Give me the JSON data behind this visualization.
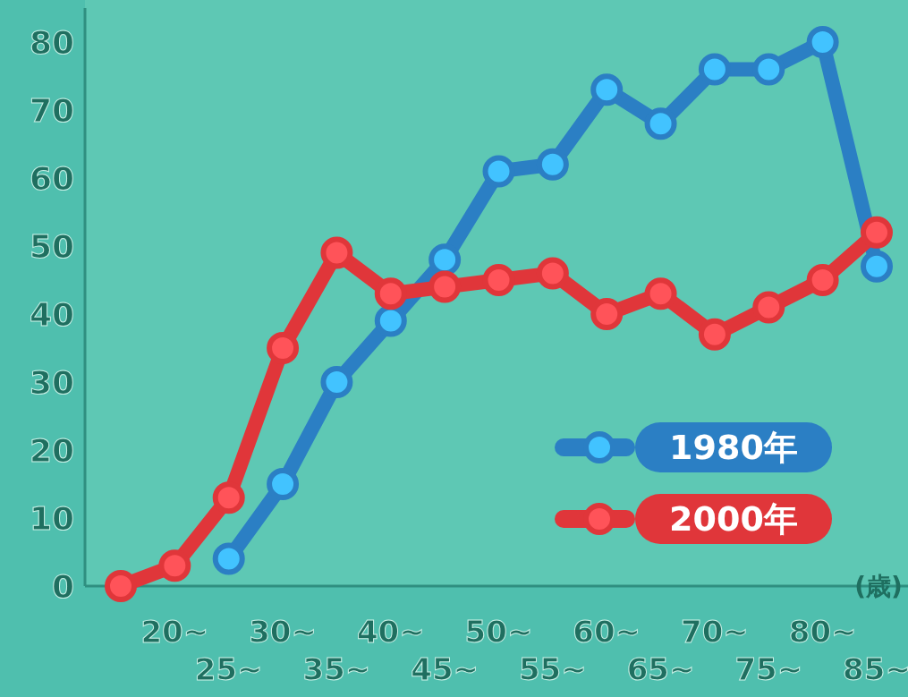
{
  "chart_data": {
    "type": "line",
    "xlabel": "(歳)",
    "categories": [
      null,
      "20~",
      "25~",
      "30~",
      "35~",
      "40~",
      "45~",
      "50~",
      "55~",
      "60~",
      "65~",
      "70~",
      "75~",
      "80~",
      "85~"
    ],
    "series": [
      {
        "name": "1980年",
        "color": "#2b7fc4",
        "values": [
          null,
          null,
          4,
          15,
          30,
          39,
          48,
          61,
          62,
          73,
          68,
          76,
          76,
          80,
          47
        ]
      },
      {
        "name": "2000年",
        "color": "#e0363a",
        "values": [
          0,
          3,
          13,
          35,
          49,
          43,
          44,
          45,
          46,
          40,
          43,
          37,
          41,
          45,
          52
        ]
      }
    ],
    "ylim": [
      0,
      85
    ],
    "yticks": [
      0,
      10,
      20,
      30,
      40,
      50,
      60,
      70,
      80
    ],
    "marker": "circle",
    "line_style": "solid",
    "legend": "bottom right",
    "grid": false
  }
}
